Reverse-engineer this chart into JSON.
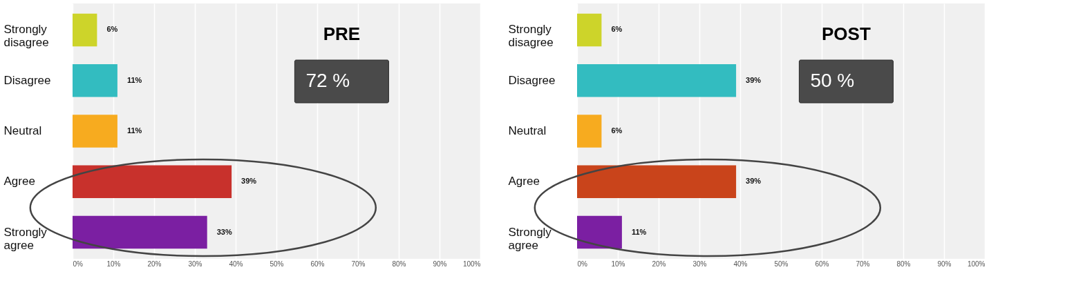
{
  "chart_data": [
    {
      "type": "bar",
      "orientation": "horizontal",
      "title": "PRE",
      "annotations": [
        "72 %"
      ],
      "categories": [
        "Strongly disagree",
        "Disagree",
        "Neutral",
        "Agree",
        "Strongly agree"
      ],
      "values": [
        6,
        11,
        11,
        39,
        33
      ],
      "colors": [
        "#cdd42a",
        "#33bcc0",
        "#f7ab1f",
        "#c8312c",
        "#7b1fa2"
      ],
      "value_labels": [
        "6%",
        "11%",
        "11%",
        "39%",
        "33%"
      ],
      "xlim": [
        0,
        100
      ],
      "xticks": [
        {
          "value": 0,
          "label": "0%"
        },
        {
          "value": 10,
          "label": "10%"
        },
        {
          "value": 20,
          "label": "20%"
        },
        {
          "value": 30,
          "label": "30%"
        },
        {
          "value": 40,
          "label": "40%"
        },
        {
          "value": 50,
          "label": "50%"
        },
        {
          "value": 60,
          "label": "60%"
        },
        {
          "value": 70,
          "label": "70%"
        },
        {
          "value": 80,
          "label": "80%"
        },
        {
          "value": 90,
          "label": "90%"
        },
        {
          "value": 100,
          "label": "100%"
        }
      ],
      "grid": true
    },
    {
      "type": "bar",
      "orientation": "horizontal",
      "title": "POST",
      "annotations": [
        "50 %"
      ],
      "categories": [
        "Strongly disagree",
        "Disagree",
        "Neutral",
        "Agree",
        "Strongly agree"
      ],
      "values": [
        6,
        39,
        6,
        39,
        11
      ],
      "colors": [
        "#cdd42a",
        "#33bcc0",
        "#f7ab1f",
        "#c9441b",
        "#7b1fa2"
      ],
      "value_labels": [
        "6%",
        "39%",
        "6%",
        "39%",
        "11%"
      ],
      "xlim": [
        0,
        100
      ],
      "xticks": [
        {
          "value": 0,
          "label": "0%"
        },
        {
          "value": 10,
          "label": "10%"
        },
        {
          "value": 20,
          "label": "20%"
        },
        {
          "value": 30,
          "label": "30%"
        },
        {
          "value": 40,
          "label": "40%"
        },
        {
          "value": 50,
          "label": "50%"
        },
        {
          "value": 60,
          "label": "60%"
        },
        {
          "value": 70,
          "label": "70%"
        },
        {
          "value": 80,
          "label": "80%"
        },
        {
          "value": 90,
          "label": "90%"
        },
        {
          "value": 100,
          "label": "100%"
        }
      ],
      "grid": true
    }
  ]
}
